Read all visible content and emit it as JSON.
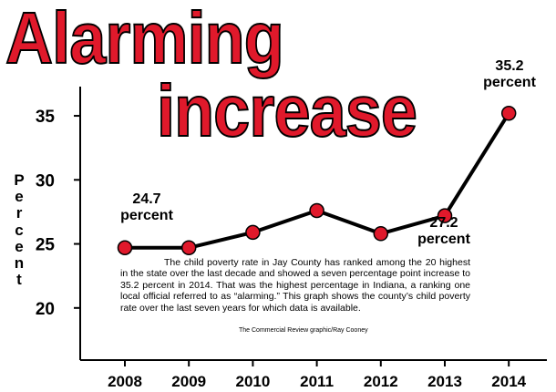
{
  "title": {
    "line1": "Alarming",
    "line2": "increase"
  },
  "chart_data": {
    "type": "line",
    "title": "Alarming increase",
    "ylabel": "Percent",
    "xlabel": "",
    "categories": [
      "2008",
      "2009",
      "2010",
      "2011",
      "2012",
      "2013",
      "2014"
    ],
    "values": [
      24.7,
      24.7,
      25.9,
      27.6,
      25.8,
      27.2,
      35.2
    ],
    "ylim": [
      16,
      37.5
    ],
    "yticks": [
      20,
      25,
      30,
      35
    ],
    "grid": false,
    "line_color": "#000000",
    "marker_color": "#e0192b",
    "annotations": [
      {
        "index": 0,
        "value": "24.7",
        "unit": "percent"
      },
      {
        "index": 5,
        "value": "27.2",
        "unit": "percent"
      },
      {
        "index": 6,
        "value": "35.2",
        "unit": "percent"
      }
    ]
  },
  "caption": "The child poverty rate in Jay County has ranked among the 20 highest in the state over the last decade and showed a seven percentage point increase to 35.2 percent in 2014. That was the highest percentage in Indiana, a ranking one local official referred to as “alarming.” This graph shows the county’s child poverty rate over the last seven years for which data is available.",
  "credit": "The Commercial Review graphic/Ray Cooney"
}
